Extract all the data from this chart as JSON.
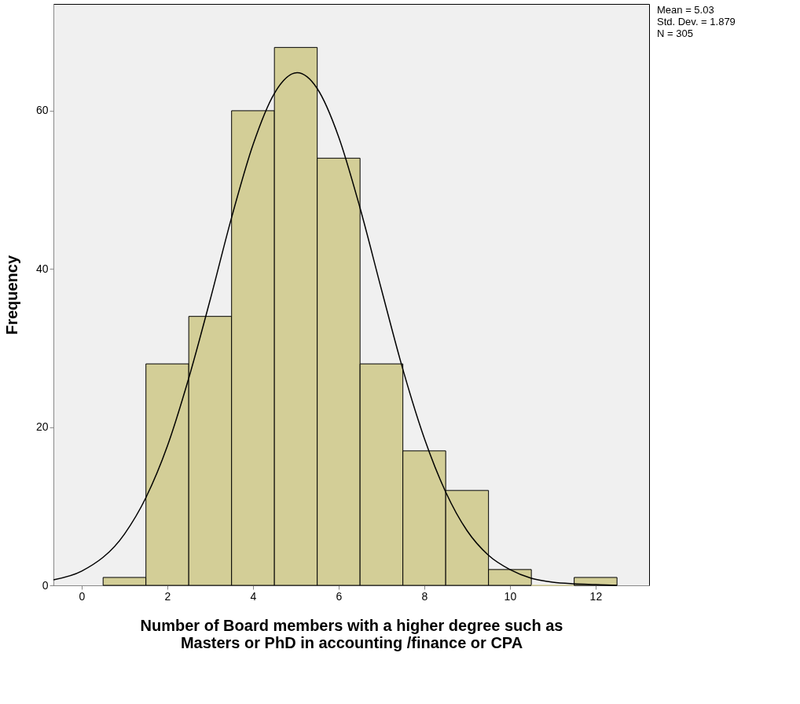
{
  "chart_data": {
    "type": "histogram",
    "xlabel": "Number of Board members with a higher degree such as Masters or PhD in accounting /finance or CPA",
    "ylabel": "Frequency",
    "bins": [
      0.5,
      1.5,
      2.5,
      3.5,
      4.5,
      5.5,
      6.5,
      7.5,
      8.5,
      9.5,
      10.5,
      11.5,
      12.5
    ],
    "values": [
      1,
      28,
      34,
      60,
      68,
      54,
      28,
      17,
      12,
      2,
      0,
      1
    ],
    "color": "#d3ce97",
    "series": [
      {
        "type": "line",
        "color": "#000000",
        "x": [
          -0.66,
          0,
          1,
          1.5,
          2,
          2.5,
          3,
          3.5,
          4,
          4.5,
          5.03,
          5.5,
          6,
          6.5,
          7,
          7.5,
          8,
          8.5,
          9,
          9.5,
          10,
          10.5,
          11,
          11.5,
          12,
          12.5
        ],
        "values": [
          0.7,
          1.8,
          6.5,
          11.1,
          17.6,
          26.2,
          36.1,
          46.5,
          55.7,
          62.2,
          64.8,
          62.8,
          56.7,
          47.7,
          37.4,
          27.3,
          18.6,
          11.8,
          6.9,
          3.8,
          2.0,
          0.9,
          0.4,
          0.2,
          0.1,
          0.0
        ]
      }
    ],
    "xlim": [
      -0.66,
      13.25
    ],
    "ylim": [
      0,
      73.5
    ],
    "xticks": [
      0,
      2,
      4,
      6,
      8,
      10,
      12
    ],
    "yticks": [
      0,
      20,
      40,
      60
    ],
    "grid": false,
    "annotations": [
      "Mean = 5.03",
      "Std. Dev. = 1.879",
      "N = 305"
    ]
  }
}
